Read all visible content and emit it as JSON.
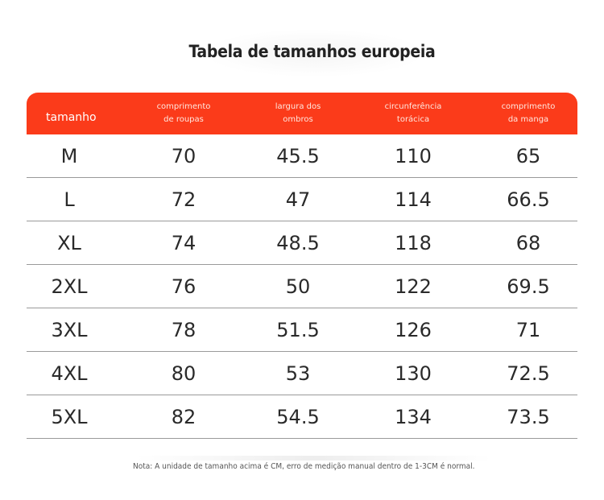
{
  "title": "Tabela de tamanhos europeia",
  "table": {
    "headers": [
      "tamanho",
      "comprimento\nde roupas",
      "largura dos\nombros",
      "circunferência\ntorácica",
      "comprimento\nda manga"
    ],
    "rows": [
      [
        "M",
        "70",
        "45.5",
        "110",
        "65"
      ],
      [
        "L",
        "72",
        "47",
        "114",
        "66.5"
      ],
      [
        "XL",
        "74",
        "48.5",
        "118",
        "68"
      ],
      [
        "2XL",
        "76",
        "50",
        "122",
        "69.5"
      ],
      [
        "3XL",
        "78",
        "51.5",
        "126",
        "71"
      ],
      [
        "4XL",
        "80",
        "53",
        "130",
        "72.5"
      ],
      [
        "5XL",
        "82",
        "54.5",
        "134",
        "73.5"
      ]
    ]
  },
  "note": "Nota: A unidade de tamanho acima é CM, erro de medição manual dentro de 1-3CM é normal.",
  "colors": {
    "header_bg": "#fb3b1a",
    "row_divider": "#9a9a9a"
  }
}
